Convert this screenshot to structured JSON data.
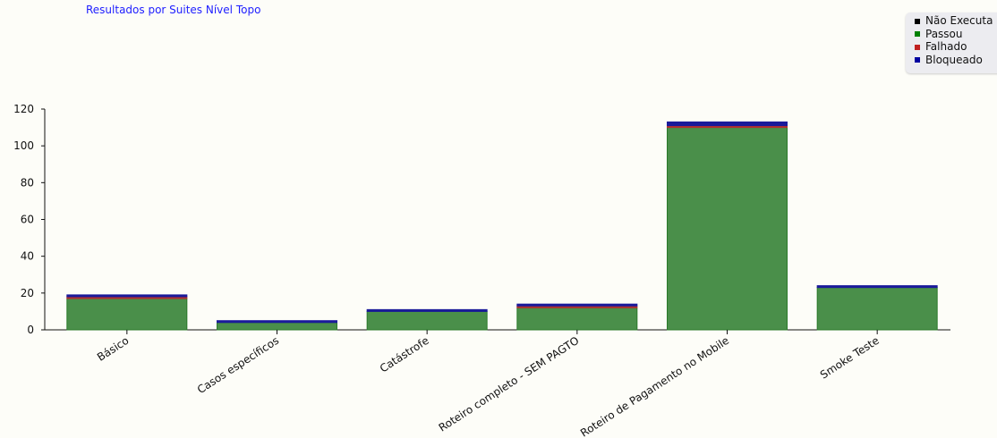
{
  "chart_data": {
    "type": "bar",
    "stacked": true,
    "title": "Resultados por Suites Nível Topo",
    "categories": [
      "Básico",
      "Casos específicos",
      "Catástrofe",
      "Roteiro completo - SEM PAGTO",
      "Roteiro de Pagamento no Mobile",
      "Smoke Teste"
    ],
    "series": [
      {
        "name": "Não Executa",
        "color": "#000000",
        "values": [
          0,
          0,
          0,
          0,
          0,
          0
        ]
      },
      {
        "name": "Passou",
        "color": "#4a8f4a",
        "values": [
          17,
          4,
          10,
          12,
          110,
          23
        ]
      },
      {
        "name": "Falhado",
        "color": "#b03030",
        "values": [
          1,
          0,
          0,
          1,
          1,
          0
        ]
      },
      {
        "name": "Bloqueado",
        "color": "#1a1a9a",
        "values": [
          1,
          1,
          1,
          1,
          2,
          1
        ]
      }
    ],
    "stack_order": [
      "Passou",
      "Falhado",
      "Bloqueado",
      "Não Executa"
    ],
    "legend_swatch_colors": [
      "#000000",
      "#008000",
      "#c02020",
      "#0000a0"
    ],
    "ylim": [
      0,
      120
    ],
    "yticks": [
      "0",
      "20",
      "40",
      "60",
      "80",
      "100",
      "120"
    ],
    "xlabel": "",
    "ylabel": "",
    "grid": false,
    "legend_position": "top-right"
  }
}
